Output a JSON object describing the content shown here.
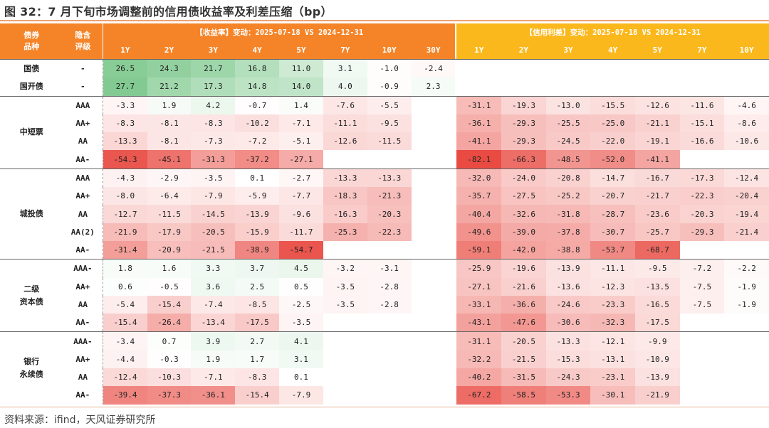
{
  "title": "图 32：7 月下旬市场调整前的信用债收益率及利差压缩（bp）",
  "source": "资料来源：ifind，天风证券研究所",
  "header": {
    "type_label": "债券\n品种",
    "rating_label": "隐含\n评级",
    "yield_title": "【收益率】变动：2025-07-18 VS 2024-12-31",
    "credit_title": "【信用利差】变动：2025-07-18 VS 2024-12-31",
    "yield_tenors": [
      "1Y",
      "2Y",
      "3Y",
      "4Y",
      "5Y",
      "7Y",
      "10Y",
      "30Y"
    ],
    "credit_tenors": [
      "1Y",
      "2Y",
      "3Y",
      "4Y",
      "5Y",
      "7Y",
      "10Y"
    ]
  },
  "colors": {
    "orange": "#f58428",
    "yellow": "#fbb81d",
    "positive": "#57b86b",
    "negative": "#e8453c"
  },
  "groups": [
    {
      "name": "国债",
      "rows": [
        {
          "type": "国债",
          "rating": "-",
          "yield": [
            "26.5",
            "24.3",
            "21.7",
            "16.8",
            "11.0",
            "3.1",
            "-1.0",
            "-2.4"
          ],
          "credit": [
            "",
            "",
            "",
            "",
            "",
            "",
            ""
          ]
        },
        {
          "type": "国开债",
          "rating": "-",
          "yield": [
            "27.7",
            "21.2",
            "17.3",
            "14.8",
            "14.0",
            "4.0",
            "-0.9",
            "2.3"
          ],
          "credit": [
            "",
            "",
            "",
            "",
            "",
            "",
            ""
          ]
        }
      ]
    },
    {
      "name": "中短票",
      "rows": [
        {
          "rating": "AAA",
          "yield": [
            "-3.3",
            "1.9",
            "4.2",
            "-0.7",
            "1.4",
            "-7.6",
            "-5.5",
            ""
          ],
          "credit": [
            "-31.1",
            "-19.3",
            "-13.0",
            "-15.5",
            "-12.6",
            "-11.6",
            "-4.6"
          ]
        },
        {
          "rating": "AA+",
          "yield": [
            "-8.3",
            "-8.1",
            "-8.3",
            "-10.2",
            "-7.1",
            "-11.1",
            "-9.5",
            ""
          ],
          "credit": [
            "-36.1",
            "-29.3",
            "-25.5",
            "-25.0",
            "-21.1",
            "-15.1",
            "-8.6"
          ]
        },
        {
          "rating": "AA",
          "yield": [
            "-13.3",
            "-8.1",
            "-7.3",
            "-7.2",
            "-5.1",
            "-12.6",
            "-11.5",
            ""
          ],
          "credit": [
            "-41.1",
            "-29.3",
            "-24.5",
            "-22.0",
            "-19.1",
            "-16.6",
            "-10.6"
          ]
        },
        {
          "rating": "AA-",
          "yield": [
            "-54.3",
            "-45.1",
            "-31.3",
            "-37.2",
            "-27.1",
            "",
            "",
            ""
          ],
          "credit": [
            "-82.1",
            "-66.3",
            "-48.5",
            "-52.0",
            "-41.1",
            "",
            ""
          ]
        }
      ]
    },
    {
      "name": "城投债",
      "rows": [
        {
          "rating": "AAA",
          "yield": [
            "-4.3",
            "-2.9",
            "-3.5",
            "0.1",
            "-2.7",
            "-13.3",
            "-13.3",
            ""
          ],
          "credit": [
            "-32.0",
            "-24.0",
            "-20.8",
            "-14.7",
            "-16.7",
            "-17.3",
            "-12.4"
          ]
        },
        {
          "rating": "AA+",
          "yield": [
            "-8.0",
            "-6.4",
            "-7.9",
            "-5.9",
            "-7.7",
            "-18.3",
            "-21.3",
            ""
          ],
          "credit": [
            "-35.7",
            "-27.5",
            "-25.2",
            "-20.7",
            "-21.7",
            "-22.3",
            "-20.4"
          ]
        },
        {
          "rating": "AA",
          "yield": [
            "-12.7",
            "-11.5",
            "-14.5",
            "-13.9",
            "-9.6",
            "-16.3",
            "-20.3",
            ""
          ],
          "credit": [
            "-40.4",
            "-32.6",
            "-31.8",
            "-28.7",
            "-23.6",
            "-20.3",
            "-19.4"
          ]
        },
        {
          "rating": "AA(2)",
          "yield": [
            "-21.9",
            "-17.9",
            "-20.5",
            "-15.9",
            "-11.7",
            "-25.3",
            "-22.3",
            ""
          ],
          "credit": [
            "-49.6",
            "-39.0",
            "-37.8",
            "-30.7",
            "-25.7",
            "-29.3",
            "-21.4"
          ]
        },
        {
          "rating": "AA-",
          "yield": [
            "-31.4",
            "-20.9",
            "-21.5",
            "-38.9",
            "-54.7",
            "",
            "",
            ""
          ],
          "credit": [
            "-59.1",
            "-42.0",
            "-38.8",
            "-53.7",
            "-68.7",
            "",
            ""
          ]
        }
      ]
    },
    {
      "name": "二级\n资本债",
      "rows": [
        {
          "rating": "AAA-",
          "yield": [
            "1.8",
            "1.6",
            "3.3",
            "3.7",
            "4.5",
            "-3.2",
            "-3.1",
            ""
          ],
          "credit": [
            "-25.9",
            "-19.6",
            "-13.9",
            "-11.1",
            "-9.5",
            "-7.2",
            "-2.2"
          ]
        },
        {
          "rating": "AA+",
          "yield": [
            "0.6",
            "-0.5",
            "3.6",
            "2.5",
            "0.5",
            "-3.5",
            "-2.8",
            ""
          ],
          "credit": [
            "-27.1",
            "-21.6",
            "-13.6",
            "-12.3",
            "-13.5",
            "-7.5",
            "-1.9"
          ]
        },
        {
          "rating": "AA",
          "yield": [
            "-5.4",
            "-15.4",
            "-7.4",
            "-8.5",
            "-2.5",
            "-3.5",
            "-2.8",
            ""
          ],
          "credit": [
            "-33.1",
            "-36.6",
            "-24.6",
            "-23.3",
            "-16.5",
            "-7.5",
            "-1.9"
          ]
        },
        {
          "rating": "AA-",
          "yield": [
            "-15.4",
            "-26.4",
            "-13.4",
            "-17.5",
            "-3.5",
            "",
            "",
            ""
          ],
          "credit": [
            "-43.1",
            "-47.6",
            "-30.6",
            "-32.3",
            "-17.5",
            "",
            ""
          ]
        }
      ]
    },
    {
      "name": "银行\n永续债",
      "rows": [
        {
          "rating": "AAA-",
          "yield": [
            "-3.4",
            "0.7",
            "3.9",
            "2.7",
            "4.1",
            "",
            "",
            ""
          ],
          "credit": [
            "-31.1",
            "-20.5",
            "-13.3",
            "-12.1",
            "-9.9",
            "",
            ""
          ]
        },
        {
          "rating": "AA+",
          "yield": [
            "-4.4",
            "-0.3",
            "1.9",
            "1.7",
            "3.1",
            "",
            "",
            ""
          ],
          "credit": [
            "-32.2",
            "-21.5",
            "-15.3",
            "-13.1",
            "-10.9",
            "",
            ""
          ]
        },
        {
          "rating": "AA",
          "yield": [
            "-12.4",
            "-10.3",
            "-7.1",
            "-8.3",
            "0.1",
            "",
            "",
            ""
          ],
          "credit": [
            "-40.2",
            "-31.5",
            "-24.3",
            "-23.1",
            "-13.9",
            "",
            ""
          ]
        },
        {
          "rating": "AA-",
          "yield": [
            "-39.4",
            "-37.3",
            "-36.1",
            "-15.4",
            "-7.9",
            "",
            "",
            ""
          ],
          "credit": [
            "-67.2",
            "-58.5",
            "-53.3",
            "-30.1",
            "-21.9",
            "",
            ""
          ]
        }
      ]
    }
  ]
}
